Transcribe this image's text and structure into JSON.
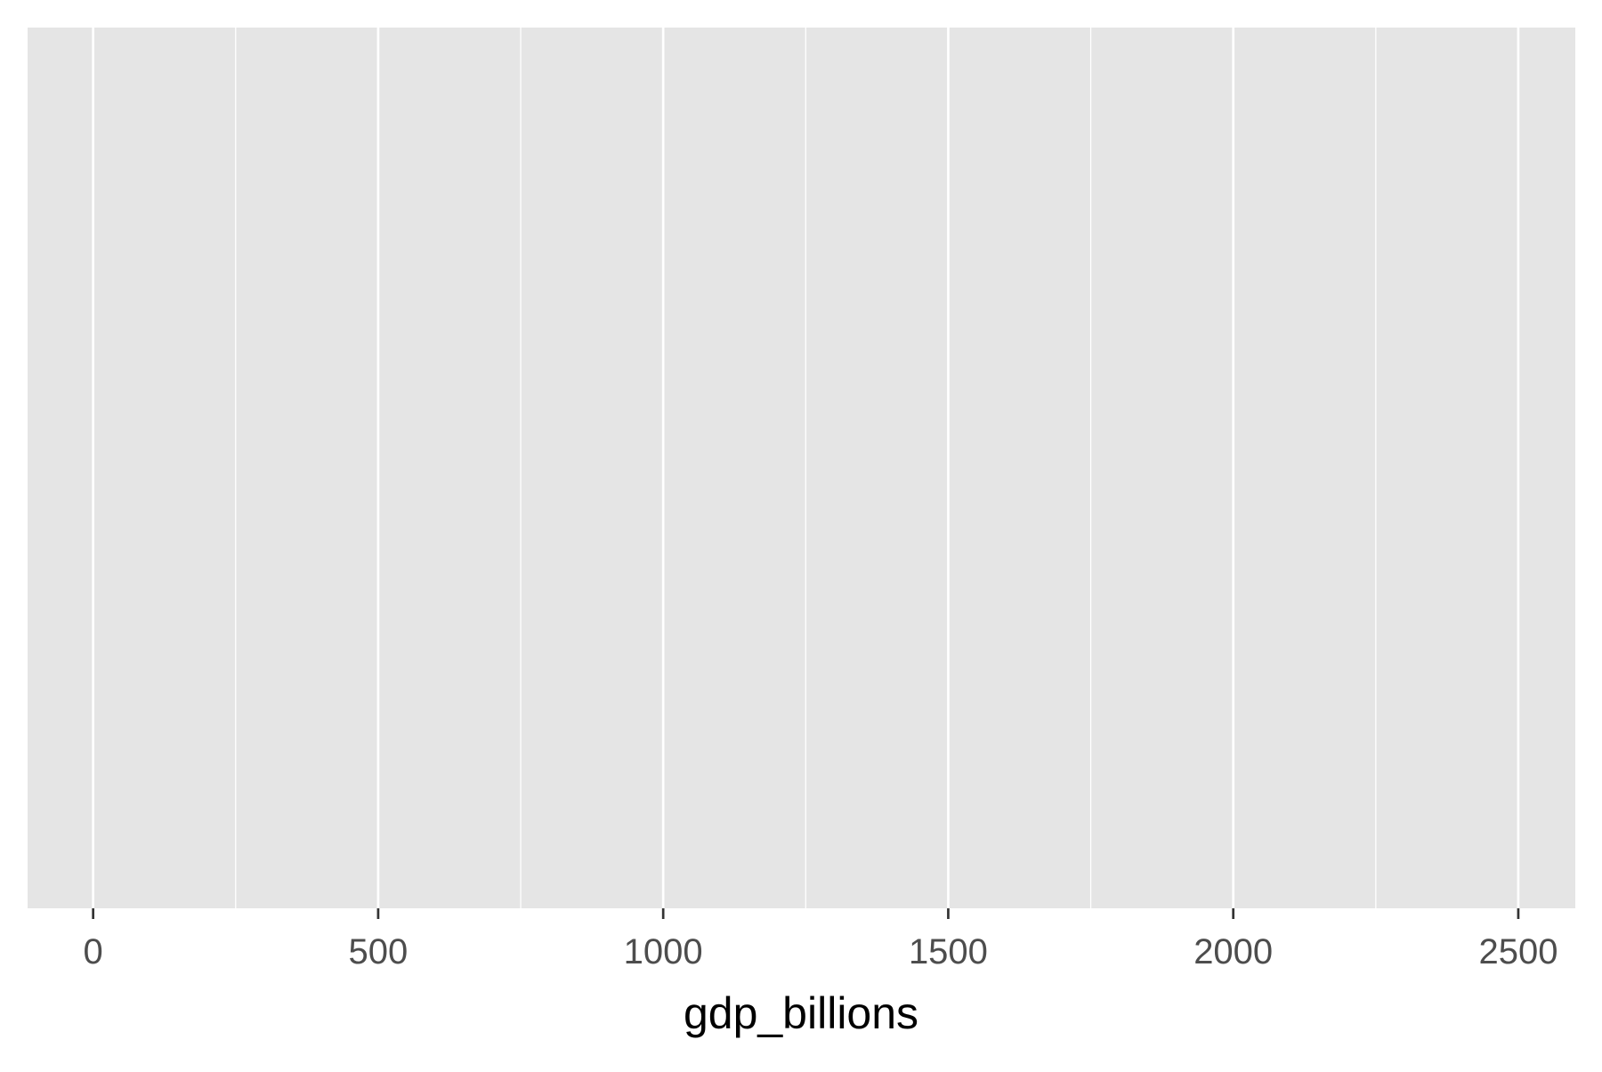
{
  "chart_data": {
    "type": "scatter",
    "title": "",
    "xlabel": "gdp_billions",
    "ylabel": "",
    "x": [],
    "y": [],
    "series": [],
    "xlim": [
      -115,
      2600
    ],
    "xticks": [
      0,
      500,
      1000,
      1500,
      2000,
      2500
    ],
    "xtick_labels": [
      "0",
      "500",
      "1000",
      "1500",
      "2000",
      "2500"
    ],
    "x_minor_breaks": [
      250,
      750,
      1250,
      1750,
      2250
    ],
    "grid": true,
    "legend": "none",
    "colors": {
      "panel_background": "#e5e5e5",
      "grid_line": "#ffffff",
      "tick_mark": "#333333",
      "tick_label": "#4d4d4d",
      "axis_title": "#000000"
    }
  }
}
